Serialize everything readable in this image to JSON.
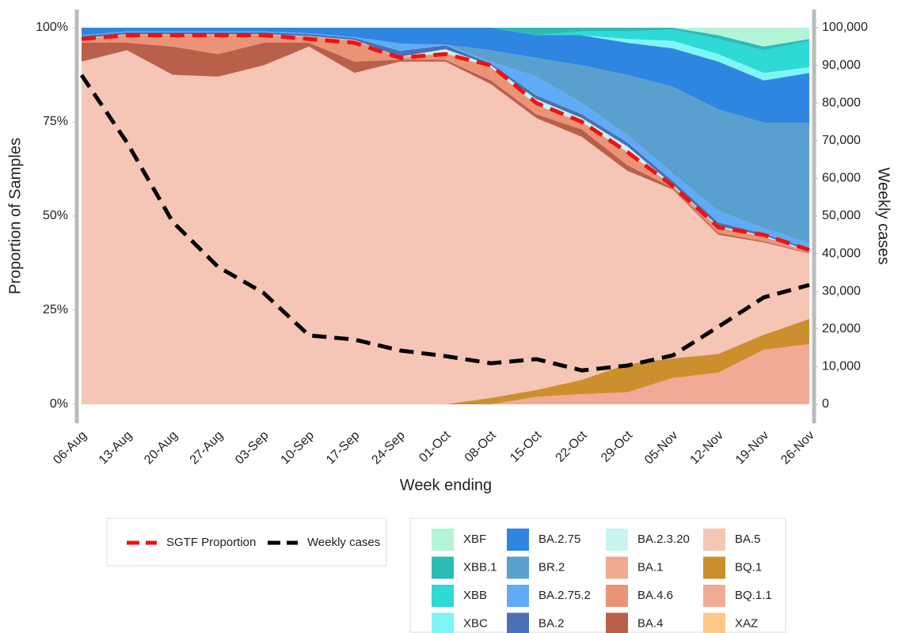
{
  "chart_data": {
    "type": "area",
    "x_label": "Week ending",
    "y_label": "Proportion of Samples",
    "y2_label": "Weekly cases",
    "categories": [
      "06-Aug",
      "13-Aug",
      "20-Aug",
      "27-Aug",
      "03-Sep",
      "10-Sep",
      "17-Sep",
      "24-Sep",
      "01-Oct",
      "08-Oct",
      "15-Oct",
      "22-Oct",
      "29-Oct",
      "05-Nov",
      "12-Nov",
      "19-Nov",
      "26-Nov"
    ],
    "ylim": [
      0,
      100
    ],
    "yticks": [
      {
        "value": 0,
        "label": "0%"
      },
      {
        "value": 25,
        "label": "25%"
      },
      {
        "value": 50,
        "label": "50%"
      },
      {
        "value": 75,
        "label": "75%"
      },
      {
        "value": 100,
        "label": "100%"
      }
    ],
    "y2lim": [
      0,
      100000
    ],
    "y2ticks": [
      0,
      {
        "value": 10000,
        "label": "10,000"
      },
      {
        "value": 20000,
        "label": "20,000"
      },
      {
        "value": 30000,
        "label": "30,000"
      },
      {
        "value": 40000,
        "label": "40,000"
      },
      {
        "value": 50000,
        "label": "50,000"
      },
      {
        "value": 60000,
        "label": "60,000"
      },
      {
        "value": 70000,
        "label": "70,000"
      },
      {
        "value": 80000,
        "label": "80,000"
      },
      {
        "value": 90000,
        "label": "90,000"
      },
      {
        "value": 100000,
        "label": "100,000"
      }
    ],
    "series": [
      {
        "name": "XBF",
        "color": "#b3f5d6",
        "values": [
          0,
          0,
          0,
          0,
          0,
          0,
          0,
          0,
          0,
          0,
          0,
          0,
          0,
          0,
          2,
          5,
          3
        ]
      },
      {
        "name": "XBB.1",
        "color": "#2bbcb5",
        "values": [
          0,
          0,
          0,
          0,
          0,
          0,
          0,
          0,
          0,
          0,
          2,
          1,
          1,
          0.5,
          1,
          1,
          0.5
        ]
      },
      {
        "name": "XBB",
        "color": "#2ed9d6",
        "values": [
          0,
          0,
          0,
          0,
          0,
          0,
          0,
          0,
          0,
          0,
          0,
          1,
          2,
          3,
          4,
          6,
          7
        ]
      },
      {
        "name": "XBC",
        "color": "#7ff5f5",
        "values": [
          0,
          0,
          0,
          0,
          0,
          0,
          0,
          0,
          0,
          0,
          0,
          0,
          1,
          2,
          2,
          2,
          1.5
        ]
      },
      {
        "name": "BA.2.75",
        "color": "#2f86e0",
        "values": [
          2,
          1,
          1,
          1,
          1,
          1.5,
          2.5,
          4.2,
          4.5,
          6,
          6,
          8,
          8.5,
          10.2,
          12.7,
          11.2,
          13.2
        ]
      },
      {
        "name": "BR.2",
        "color": "#5aa0cf",
        "values": [
          0,
          0,
          0,
          0,
          0,
          0,
          0,
          0,
          0,
          3,
          5,
          10,
          16,
          23,
          27,
          28,
          32
        ]
      },
      {
        "name": "BA.2.75.2",
        "color": "#5fabf5",
        "values": [
          0.2,
          0.2,
          0.2,
          0.2,
          0.2,
          0.2,
          0.2,
          2,
          0.2,
          0.5,
          5,
          3,
          2,
          2,
          3,
          1.5,
          1.5
        ]
      },
      {
        "name": "BA.2",
        "color": "#4a6fb5",
        "values": [
          0.5,
          0.5,
          0.5,
          0.5,
          0.5,
          0.5,
          0.5,
          1.5,
          1,
          0.5,
          1,
          1,
          1,
          1,
          1,
          0.5,
          0.5
        ]
      },
      {
        "name": "BA.2.3.20",
        "color": "#c8f5f0",
        "values": [
          0,
          0,
          0,
          0,
          0,
          0,
          0,
          0,
          1,
          0.5,
          1.5,
          1,
          1.5,
          0.3,
          0.3,
          0.3,
          0.3
        ]
      },
      {
        "name": "BA.1",
        "color": "#f0a88f",
        "values": [
          0.3,
          0.3,
          0.3,
          0.3,
          0.3,
          0.3,
          0.3,
          0.3,
          0.3,
          0,
          0,
          0,
          0,
          0,
          0,
          0,
          0
        ]
      },
      {
        "name": "BA.4.6",
        "color": "#eb9377",
        "values": [
          1,
          2,
          3,
          5,
          2,
          1.5,
          5.5,
          0.5,
          1.5,
          3.5,
          2.5,
          2,
          3.5,
          0.5,
          1.5,
          1.2,
          0.3
        ]
      },
      {
        "name": "BA.4",
        "color": "#b9604a",
        "values": [
          5,
          2,
          7.5,
          6,
          6,
          1,
          3,
          0.5,
          0.5,
          1,
          1,
          2,
          1.5,
          0.5,
          0.5,
          0.3,
          0.2
        ]
      },
      {
        "name": "BA.5",
        "color": "#f5c5b5",
        "values": [
          91,
          94,
          87.5,
          87,
          90,
          95,
          88,
          91,
          91,
          83.3,
          72.2,
          64.5,
          51.3,
          44.8,
          31.6,
          24.5,
          17.3
        ]
      },
      {
        "name": "BQ.1",
        "color": "#cc8f2e",
        "values": [
          0,
          0,
          0,
          0,
          0,
          0,
          0,
          0,
          0,
          1.7,
          1.8,
          3.8,
          7.5,
          5.2,
          5,
          4,
          6.7
        ]
      },
      {
        "name": "BQ.1.1",
        "color": "#f0aa95",
        "values": [
          0,
          0,
          0,
          0,
          0,
          0,
          0,
          0,
          0,
          0,
          2,
          2.7,
          3.2,
          7,
          8.4,
          14.5,
          16
        ]
      },
      {
        "name": "XAZ",
        "color": "#fcc887",
        "values": [
          0,
          0,
          0,
          0,
          0,
          0,
          0,
          0,
          0,
          0,
          0,
          0,
          0,
          0,
          0,
          0,
          0
        ]
      },
      {
        "name": "SGTF Proportion",
        "type": "line",
        "color": "#ee1111",
        "values": [
          97,
          98,
          98,
          98,
          98,
          97,
          96,
          92,
          93,
          90,
          80,
          75,
          67,
          58,
          47,
          45,
          41
        ]
      },
      {
        "name": "Weekly cases",
        "type": "line",
        "axis": "y2",
        "color": "#000000",
        "values": [
          87400,
          69500,
          48500,
          36500,
          29600,
          18300,
          17200,
          14300,
          12800,
          10900,
          12000,
          9000,
          10300,
          13000,
          20600,
          28400,
          31700
        ]
      }
    ]
  }
}
